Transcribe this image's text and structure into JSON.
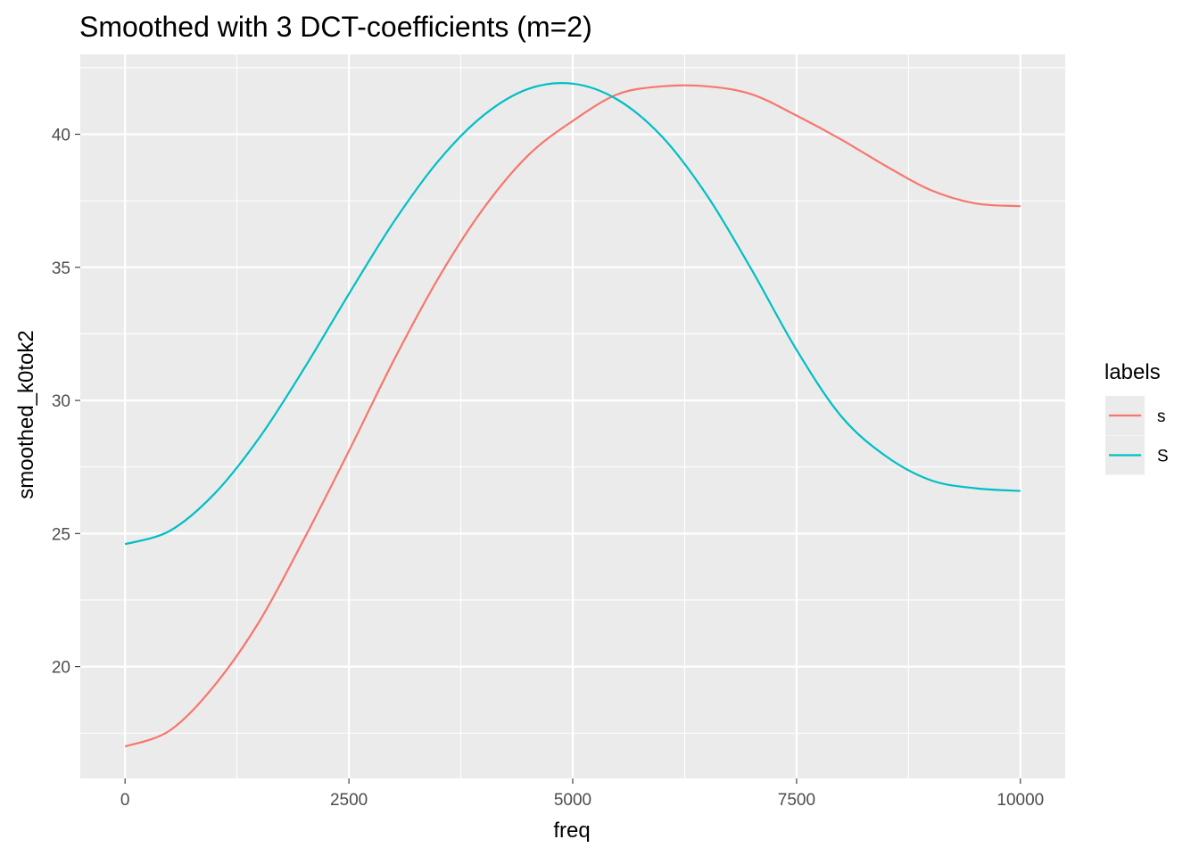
{
  "chart_data": {
    "type": "line",
    "title": "Smoothed with 3 DCT-coefficients (m=2)",
    "xlabel": "freq",
    "ylabel": "smoothed_k0tok2",
    "xlim": [
      -500,
      10500
    ],
    "ylim": [
      15.8,
      43.0
    ],
    "x_ticks": [
      0,
      2500,
      5000,
      7500,
      10000
    ],
    "x_tick_labels": [
      "0",
      "2500",
      "5000",
      "7500",
      "10000"
    ],
    "x_minor_ticks": [
      1250,
      3750,
      6250,
      8750
    ],
    "y_ticks": [
      20,
      25,
      30,
      35,
      40
    ],
    "y_tick_labels": [
      "20",
      "25",
      "30",
      "35",
      "40"
    ],
    "y_minor_ticks": [
      17.5,
      22.5,
      27.5,
      32.5,
      37.5,
      42.5
    ],
    "grid": true,
    "legend": {
      "title": "labels",
      "position": "right"
    },
    "series": [
      {
        "name": "s",
        "color": "#F8766D",
        "x": [
          0,
          500,
          1000,
          1500,
          2000,
          2500,
          3000,
          3500,
          4000,
          4500,
          5000,
          5500,
          6000,
          6500,
          7000,
          7500,
          8000,
          8500,
          9000,
          9500,
          10000
        ],
        "y": [
          17.0,
          17.6,
          19.3,
          21.7,
          24.8,
          28.1,
          31.5,
          34.6,
          37.2,
          39.2,
          40.5,
          41.5,
          41.8,
          41.8,
          41.5,
          40.7,
          39.8,
          38.8,
          37.9,
          37.4,
          37.3
        ]
      },
      {
        "name": "S",
        "color": "#00BFC4",
        "x": [
          0,
          500,
          1000,
          1500,
          2000,
          2500,
          3000,
          3500,
          4000,
          4500,
          5000,
          5500,
          6000,
          6500,
          7000,
          7500,
          8000,
          8500,
          9000,
          9500,
          10000
        ],
        "y": [
          24.6,
          25.1,
          26.5,
          28.6,
          31.2,
          34.0,
          36.7,
          39.0,
          40.7,
          41.7,
          41.9,
          41.3,
          39.9,
          37.7,
          34.9,
          31.9,
          29.4,
          27.9,
          27.0,
          26.7,
          26.6
        ]
      }
    ]
  }
}
